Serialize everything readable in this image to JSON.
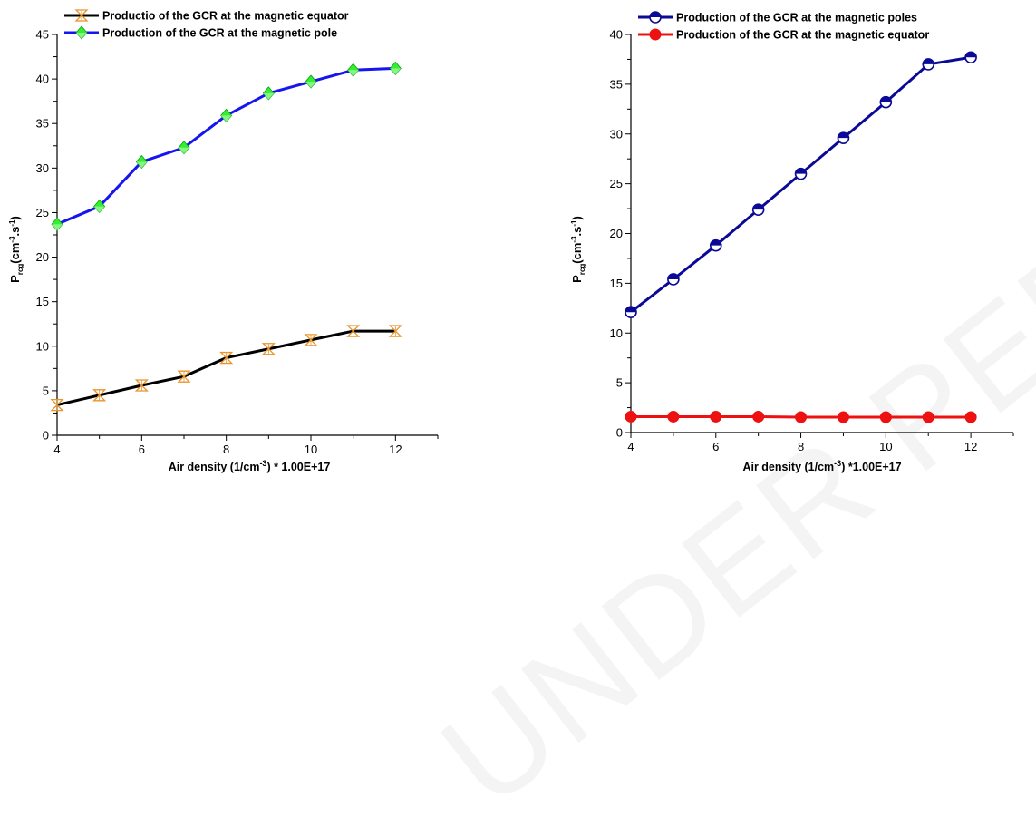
{
  "watermark": "UNDER PEER REVIEW",
  "chart_data": [
    {
      "type": "line",
      "xlabel_main": "Air density (1/cm",
      "xlabel_sup": "-3",
      "xlabel_tail": ") * 1.00E+17",
      "ylabel_main": "P",
      "ylabel_sub": "rcg",
      "ylabel_mid1": "(cm",
      "ylabel_sup1": "-3",
      "ylabel_mid2": ".s",
      "ylabel_sup2": "-1",
      "ylabel_end": ")",
      "xlim": [
        4,
        13
      ],
      "ylim": [
        0,
        45
      ],
      "x_ticks": [
        4,
        6,
        8,
        10,
        12
      ],
      "y_ticks": [
        0,
        5,
        10,
        15,
        20,
        25,
        30,
        35,
        40,
        45
      ],
      "legend_position": "top-left",
      "x": [
        4,
        5,
        6,
        7,
        8,
        9,
        10,
        11,
        12
      ],
      "series": [
        {
          "name": "Productio of the GCR at the magnetic equator",
          "values": [
            3.4,
            4.5,
            5.6,
            6.6,
            8.7,
            9.7,
            10.7,
            11.7,
            11.7
          ],
          "line_color": "#000000",
          "marker": "hourglass",
          "marker_color": "#e8952c"
        },
        {
          "name": "Production of the GCR at the magnetic pole",
          "values": [
            23.7,
            25.7,
            30.7,
            32.3,
            35.9,
            38.4,
            39.7,
            41.0,
            41.2
          ],
          "line_color": "#1515f0",
          "marker": "diamond",
          "marker_color": "#33ee33"
        }
      ]
    },
    {
      "type": "line",
      "xlabel_main": "Air density (1/cm",
      "xlabel_sup": "-3",
      "xlabel_tail": ") *1.00E+17",
      "ylabel_main": "P",
      "ylabel_sub": "rcg",
      "ylabel_mid1": "(cm",
      "ylabel_sup1": "-3",
      "ylabel_mid2": ".s",
      "ylabel_sup2": "-1",
      "ylabel_end": ")",
      "xlim": [
        4,
        13
      ],
      "ylim": [
        0,
        40
      ],
      "x_ticks": [
        4,
        6,
        8,
        10,
        12
      ],
      "y_ticks": [
        0,
        5,
        10,
        15,
        20,
        25,
        30,
        35,
        40
      ],
      "legend_position": "top-left",
      "x": [
        4,
        5,
        6,
        7,
        8,
        9,
        10,
        11,
        12
      ],
      "series": [
        {
          "name": "Production of the GCR at the magnetic poles",
          "values": [
            12.1,
            15.4,
            18.8,
            22.4,
            26.0,
            29.6,
            33.2,
            37.0,
            37.7
          ],
          "line_color": "#0a0a96",
          "marker": "half-circle",
          "marker_color": "#0a0a96"
        },
        {
          "name": "Production of the GCR at the magnetic equator",
          "values": [
            1.6,
            1.6,
            1.6,
            1.6,
            1.55,
            1.55,
            1.55,
            1.55,
            1.55
          ],
          "line_color": "#ee1111",
          "marker": "circle",
          "marker_color": "#ee1111"
        }
      ]
    }
  ]
}
